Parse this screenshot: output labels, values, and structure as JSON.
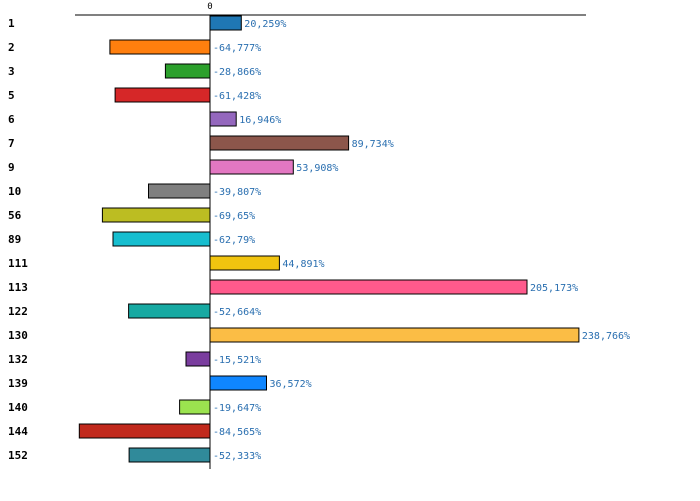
{
  "chart_data": {
    "type": "bar",
    "orientation": "horizontal",
    "title": "",
    "xlabel": "",
    "ylabel": "",
    "zero_tick": "0",
    "xlim": [
      -100,
      260
    ],
    "grid": false,
    "categories": [
      "1",
      "2",
      "3",
      "5",
      "6",
      "7",
      "9",
      "10",
      "56",
      "89",
      "111",
      "113",
      "122",
      "130",
      "132",
      "139",
      "140",
      "144",
      "152"
    ],
    "values": [
      20.259,
      -64.777,
      -28.866,
      -61.428,
      16.946,
      89.734,
      53.908,
      -39.807,
      -69.65,
      -62.79,
      44.891,
      205.173,
      -52.664,
      238.766,
      -15.521,
      36.572,
      -19.647,
      -84.565,
      -52.333
    ],
    "value_labels": [
      "20,259%",
      "-64,777%",
      "-28,866%",
      "-61,428%",
      "16,946%",
      "89,734%",
      "53,908%",
      "-39,807%",
      "-69,65%",
      "-62,79%",
      "44,891%",
      "205,173%",
      "-52,664%",
      "238,766%",
      "-15,521%",
      "36,572%",
      "-19,647%",
      "-84,565%",
      "-52,333%"
    ],
    "colors": [
      "#1f77b4",
      "#ff7f0e",
      "#2ca02c",
      "#d62728",
      "#9467bd",
      "#8c564b",
      "#e377c2",
      "#7f7f7f",
      "#bcbd22",
      "#17becf",
      "#f1c40f",
      "#ff5a8c",
      "#17a9a2",
      "#fbbd45",
      "#7a3d9e",
      "#0f86ff",
      "#9be34f",
      "#c1291c",
      "#308a9a"
    ]
  }
}
